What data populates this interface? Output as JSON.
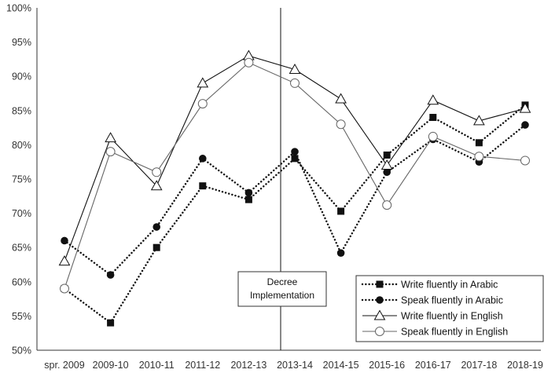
{
  "chart_data": {
    "type": "line",
    "categories": [
      "spr. 2009",
      "2009-10",
      "2010-11",
      "2011-12",
      "2012-13",
      "2013-14",
      "2014-15",
      "2015-16",
      "2016-17",
      "2017-18",
      "2018-19"
    ],
    "ylim": [
      50,
      100
    ],
    "yticks": [
      50,
      55,
      60,
      65,
      70,
      75,
      80,
      85,
      90,
      95,
      100
    ],
    "ytick_labels": [
      "50%",
      "55%",
      "60%",
      "65%",
      "70%",
      "75%",
      "80%",
      "85%",
      "90%",
      "95%",
      "100%"
    ],
    "grid": false,
    "legend_position": "bottom-right",
    "series": [
      {
        "name": "Write fluently in Arabic",
        "values": [
          59,
          54,
          65,
          74,
          72,
          78,
          70.3,
          78.5,
          84,
          80.3,
          85.8
        ],
        "line_style": "dotted",
        "marker": "filled-square",
        "color": "#111111"
      },
      {
        "name": "Speak fluently in Arabic",
        "values": [
          66,
          61,
          68,
          78,
          73,
          79,
          64.2,
          76,
          80.8,
          77.5,
          82.9
        ],
        "line_style": "dotted",
        "marker": "filled-circle",
        "color": "#111111"
      },
      {
        "name": "Write fluently in English",
        "values": [
          63,
          81,
          74,
          89,
          93,
          91,
          86.7,
          77,
          86.5,
          83.5,
          85.3
        ],
        "line_style": "solid",
        "marker": "open-triangle",
        "color": "#111111"
      },
      {
        "name": "Speak fluently in English",
        "values": [
          59,
          79,
          76,
          86,
          92,
          89,
          83,
          71.2,
          81.2,
          78.3,
          77.7
        ],
        "line_style": "solid",
        "marker": "open-circle",
        "color": "#666666"
      }
    ],
    "annotations": [
      {
        "text_line1": "Decree",
        "text_line2": "Implementation",
        "at_category": "2013-14",
        "marker": "vertical-line"
      }
    ]
  }
}
